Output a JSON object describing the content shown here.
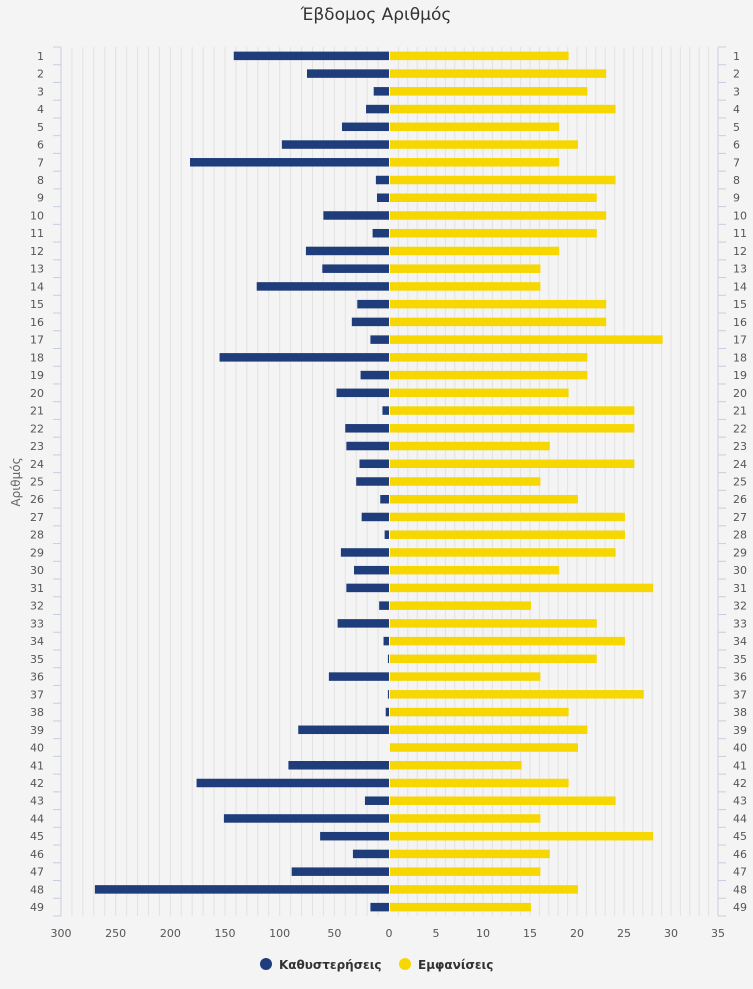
{
  "chart_data": {
    "type": "bar",
    "orientation": "horizontal-diverging",
    "title": "Έβδομος Αριθμός",
    "ylabel": "Αριθμός",
    "categories": [
      "1",
      "2",
      "3",
      "4",
      "5",
      "6",
      "7",
      "8",
      "9",
      "10",
      "11",
      "12",
      "13",
      "14",
      "15",
      "16",
      "17",
      "18",
      "19",
      "20",
      "21",
      "22",
      "23",
      "24",
      "25",
      "26",
      "27",
      "28",
      "29",
      "30",
      "31",
      "32",
      "33",
      "34",
      "35",
      "36",
      "37",
      "38",
      "39",
      "40",
      "41",
      "42",
      "43",
      "44",
      "45",
      "46",
      "47",
      "48",
      "49"
    ],
    "left_axis": {
      "ticks": [
        "300",
        "250",
        "200",
        "150",
        "100",
        "50",
        "0"
      ],
      "range": [
        0,
        300
      ]
    },
    "right_axis": {
      "ticks": [
        "5",
        "10",
        "15",
        "20",
        "25",
        "30",
        "35"
      ],
      "range": [
        0,
        35
      ]
    },
    "series": [
      {
        "name": "Καθυστερήσεις",
        "color": "#1f3d7a",
        "side": "left",
        "values": [
          142,
          75,
          14,
          21,
          43,
          98,
          182,
          12,
          11,
          60,
          15,
          76,
          61,
          121,
          29,
          34,
          17,
          155,
          26,
          48,
          6,
          40,
          39,
          27,
          30,
          8,
          25,
          4,
          44,
          32,
          39,
          9,
          47,
          5,
          1,
          55,
          1,
          3,
          83,
          0,
          92,
          176,
          22,
          151,
          63,
          33,
          89,
          269,
          17
        ]
      },
      {
        "name": "Εμφανίσεις",
        "color": "#f7d701",
        "side": "right",
        "values": [
          19,
          23,
          21,
          24,
          18,
          20,
          18,
          24,
          22,
          23,
          22,
          18,
          16,
          16,
          23,
          23,
          29,
          21,
          21,
          19,
          26,
          26,
          17,
          26,
          16,
          20,
          25,
          25,
          24,
          18,
          28,
          15,
          22,
          25,
          22,
          16,
          27,
          19,
          21,
          20,
          14,
          19,
          24,
          16,
          28,
          17,
          16,
          20,
          15
        ]
      }
    ],
    "legend": [
      "Καθυστερήσεις",
      "Εμφανίσεις"
    ],
    "legend_position": "bottom-center",
    "grid": true
  }
}
